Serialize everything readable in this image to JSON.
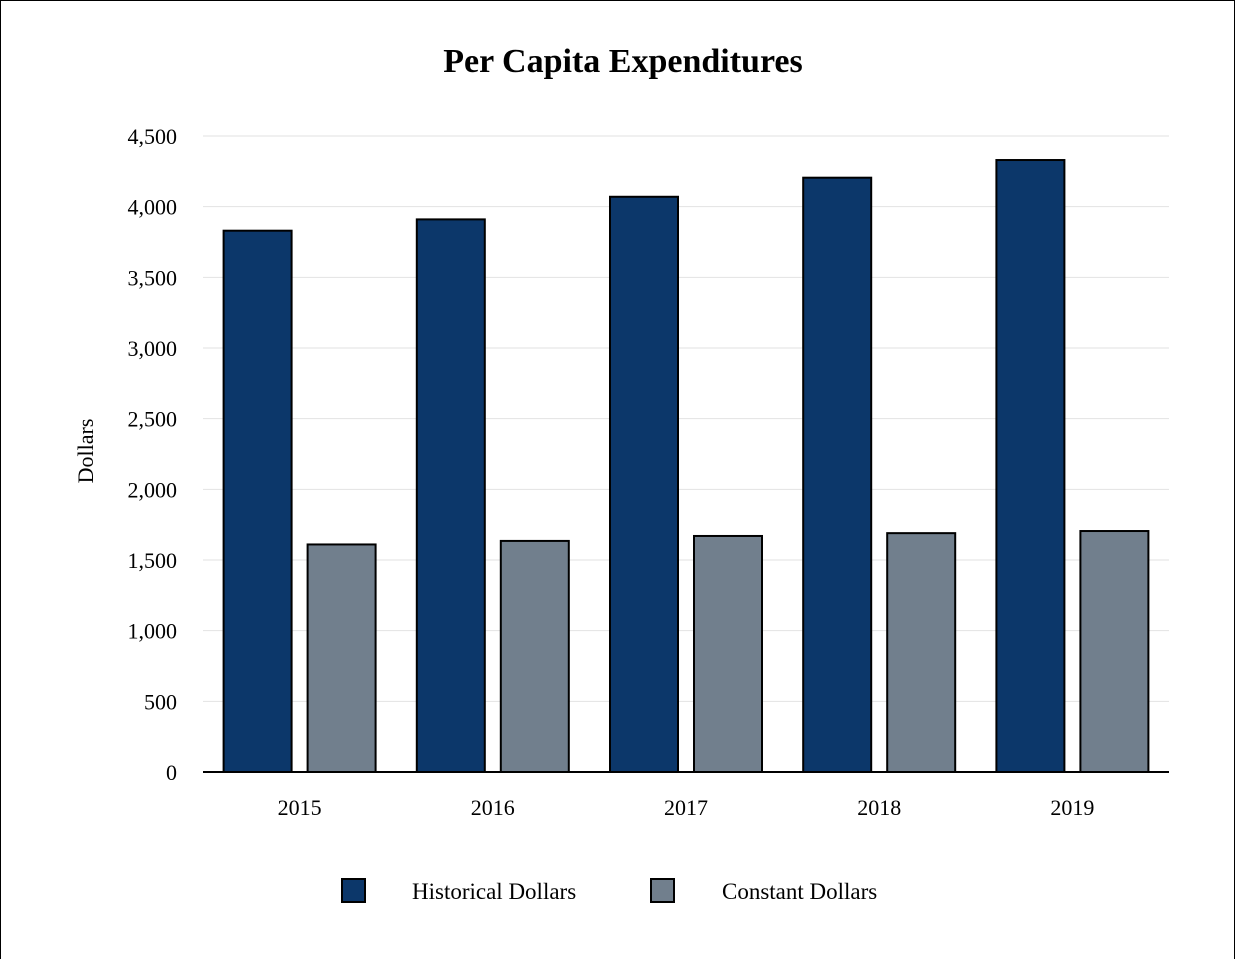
{
  "chart_data": {
    "type": "bar",
    "title": "Per Capita Expenditures",
    "xlabel": "",
    "ylabel": "Dollars",
    "categories": [
      "2015",
      "2016",
      "2017",
      "2018",
      "2019"
    ],
    "series": [
      {
        "name": "Historical Dollars",
        "values": [
          3830,
          3910,
          4070,
          4205,
          4330
        ],
        "color": "#0c376a"
      },
      {
        "name": "Constant Dollars",
        "values": [
          1610,
          1635,
          1670,
          1690,
          1705
        ],
        "color": "#717f8d"
      }
    ],
    "ylim": [
      0,
      4500
    ],
    "yticks": [
      0,
      500,
      1000,
      1500,
      2000,
      2500,
      3000,
      3500,
      4000,
      4500
    ],
    "ytick_labels": [
      "0",
      "500",
      "1,000",
      "1,500",
      "2,000",
      "2,500",
      "3,000",
      "3,500",
      "4,000",
      "4,500"
    ],
    "grid": true,
    "legend_position": "bottom"
  }
}
